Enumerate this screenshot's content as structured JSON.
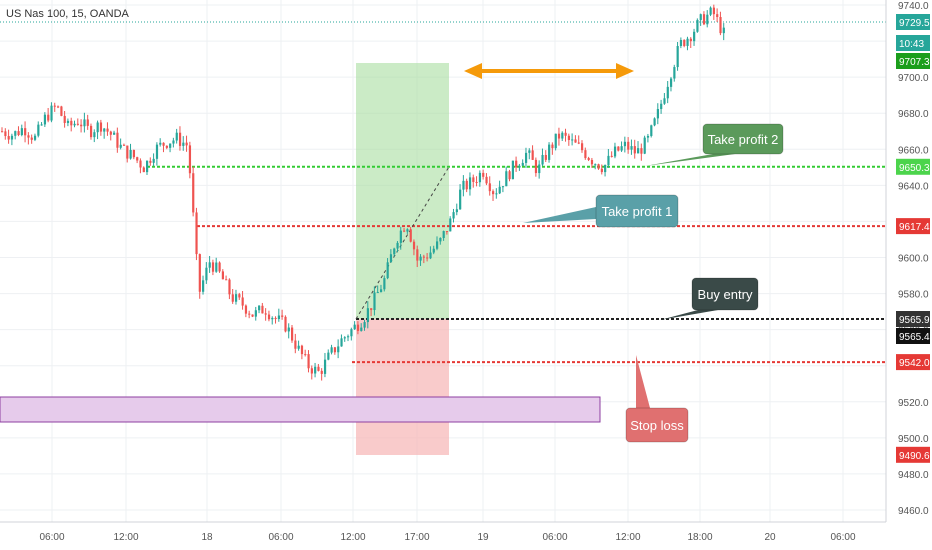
{
  "header": {
    "title": "US Nas 100, 15, OANDA"
  },
  "chart_data": {
    "type": "candlestick",
    "title": "US Nas 100, 15, OANDA",
    "ylim": [
      9452,
      9742
    ],
    "y_ticks": [
      "9740.0",
      "9720.0",
      "9700.0",
      "9680.0",
      "9660.0",
      "9640.0",
      "9620.0",
      "9600.0",
      "9580.0",
      "9560.0",
      "9540.0",
      "9520.0",
      "9500.0",
      "9480.0",
      "9460.0"
    ],
    "y_tick_values": [
      9740,
      9720,
      9700,
      9680,
      9660,
      9640,
      9620,
      9600,
      9580,
      9560,
      9540,
      9520,
      9500,
      9480,
      9460
    ],
    "x_ticks": [
      "06:00",
      "12:00",
      "18",
      "06:00",
      "12:00",
      "17:00",
      "19",
      "06:00",
      "12:00",
      "18:00",
      "20",
      "06:00"
    ],
    "price_tags": [
      {
        "label": "9729.5",
        "value": 9729.5,
        "color": "#26a69a"
      },
      {
        "label": "10:43",
        "value": 9716,
        "color": "#26a69a"
      },
      {
        "label": "9707.3",
        "value": 9707.3,
        "color": "#1b9e1b"
      },
      {
        "label": "9650.3",
        "value": 9650.3,
        "color": "#4cd44c"
      },
      {
        "label": "9617.4",
        "value": 9617.4,
        "color": "#e53935"
      },
      {
        "label": "9565.9",
        "value": 9565.9,
        "color": "#333333"
      },
      {
        "label": "9565.4",
        "value": 9565.4,
        "color": "#111111"
      },
      {
        "label": "9542.0",
        "value": 9542.0,
        "color": "#e53935"
      },
      {
        "label": "9490.6",
        "value": 9490.6,
        "color": "#e53935"
      }
    ],
    "levels": [
      {
        "name": "Take profit 2",
        "value": 9650.3,
        "color": "#33cc33"
      },
      {
        "name": "Take profit 1",
        "value": 9617.4,
        "color": "#e53935"
      },
      {
        "name": "Buy entry",
        "value": 9565.9,
        "color": "#222222"
      },
      {
        "name": "Stop loss",
        "value": 9542.0,
        "color": "#e53935"
      }
    ],
    "annotations": [
      {
        "label": "Take profit 2",
        "color": "#5b9a5b"
      },
      {
        "label": "Take profit 1",
        "color": "#5aa0a8"
      },
      {
        "label": "Buy entry",
        "color": "#3a4a48"
      },
      {
        "label": "Stop loss",
        "color": "#e07070"
      }
    ],
    "last_price": 9729.5,
    "series_close_path": [
      9670,
      9668,
      9672,
      9666,
      9678,
      9684,
      9672,
      9676,
      9670,
      9674,
      9668,
      9660,
      9656,
      9650,
      9660,
      9664,
      9666,
      9662,
      9580,
      9598,
      9590,
      9578,
      9574,
      9568,
      9572,
      9566,
      9562,
      9550,
      9540,
      9536,
      9546,
      9554,
      9560,
      9566,
      9576,
      9588,
      9610,
      9620,
      9598,
      9602,
      9608,
      9620,
      9638,
      9642,
      9648,
      9636,
      9644,
      9652,
      9658,
      9648,
      9660,
      9668,
      9664,
      9660,
      9654,
      9650,
      9658,
      9662,
      9658,
      9664,
      9680,
      9700,
      9718,
      9724,
      9732,
      9736,
      9724
    ]
  }
}
